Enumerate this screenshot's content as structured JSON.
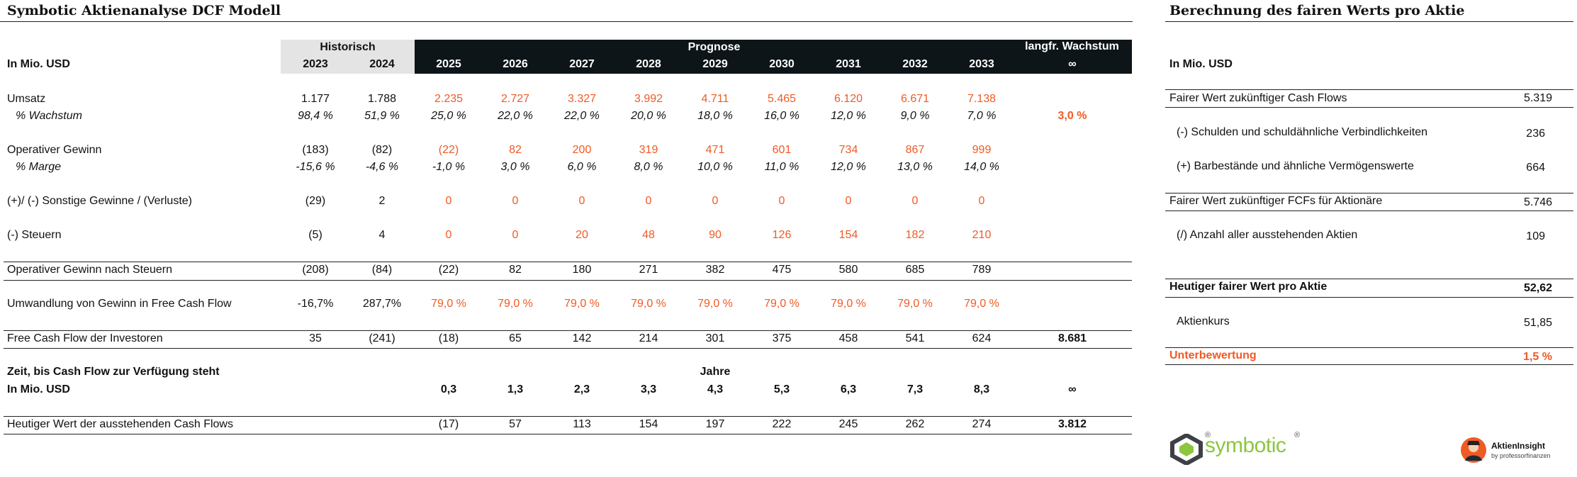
{
  "left": {
    "title": "Symbotic Aktienanalyse DCF Modell",
    "unit_label": "In Mio. USD",
    "hist_label": "Historisch",
    "prog_label": "Prognose",
    "lt_label": "langfr. Wachstum",
    "inf": "∞",
    "years": [
      "2023",
      "2024",
      "2025",
      "2026",
      "2027",
      "2028",
      "2029",
      "2030",
      "2031",
      "2032",
      "2033"
    ],
    "rows": [
      {
        "label": "Umsatz",
        "values": [
          "1.177",
          "1.788",
          "2.235",
          "2.727",
          "3.327",
          "3.992",
          "4.711",
          "5.465",
          "6.120",
          "6.671",
          "7.138"
        ]
      },
      {
        "label": "% Wachstum",
        "values": [
          "98,4 %",
          "51,9 %",
          "25,0 %",
          "22,0 %",
          "22,0 %",
          "20,0 %",
          "18,0 %",
          "16,0 %",
          "12,0 %",
          "9,0 %",
          "7,0 %"
        ],
        "extra": "3,0 %"
      },
      {
        "label": "Operativer Gewinn",
        "values": [
          "(183)",
          "(82)",
          "(22)",
          "82",
          "200",
          "319",
          "471",
          "601",
          "734",
          "867",
          "999"
        ]
      },
      {
        "label": "% Marge",
        "values": [
          "-15,6 %",
          "-4,6 %",
          "-1,0 %",
          "3,0 %",
          "6,0 %",
          "8,0 %",
          "10,0 %",
          "11,0 %",
          "12,0 %",
          "13,0 %",
          "14,0 %"
        ]
      },
      {
        "label": "(+)/ (-) Sonstige Gewinne / (Verluste)",
        "values": [
          "(29)",
          "2",
          "0",
          "0",
          "0",
          "0",
          "0",
          "0",
          "0",
          "0",
          "0"
        ]
      },
      {
        "label": "(-) Steuern",
        "values": [
          "(5)",
          "4",
          "0",
          "0",
          "20",
          "48",
          "90",
          "126",
          "154",
          "182",
          "210"
        ]
      },
      {
        "label": "Operativer Gewinn nach Steuern",
        "values": [
          "(208)",
          "(84)",
          "(22)",
          "82",
          "180",
          "271",
          "382",
          "475",
          "580",
          "685",
          "789"
        ]
      },
      {
        "label": "Umwandlung von Gewinn in Free Cash Flow",
        "values": [
          "-16,7%",
          "287,7%",
          "79,0 %",
          "79,0 %",
          "79,0 %",
          "79,0 %",
          "79,0 %",
          "79,0 %",
          "79,0 %",
          "79,0 %",
          "79,0 %"
        ]
      },
      {
        "label": "Free Cash Flow der Investoren",
        "values": [
          "35",
          "(241)",
          "(18)",
          "65",
          "142",
          "214",
          "301",
          "375",
          "458",
          "541",
          "624"
        ],
        "extra": "8.681"
      }
    ],
    "time_label": "Zeit, bis Cash Flow zur Verfügung steht",
    "jahre_label": "Jahre",
    "time_unit": "In Mio. USD",
    "time_values": [
      "0,3",
      "1,3",
      "2,3",
      "3,3",
      "4,3",
      "5,3",
      "6,3",
      "7,3",
      "8,3"
    ],
    "pv": {
      "label": "Heutiger Wert der ausstehenden Cash Flows",
      "values": [
        "(17)",
        "57",
        "113",
        "154",
        "197",
        "222",
        "245",
        "262",
        "274"
      ],
      "extra": "3.812"
    }
  },
  "right": {
    "title": "Berechnung des fairen Werts pro Aktie",
    "unit_label": "In Mio. USD",
    "rows": [
      {
        "label": "Fairer Wert zukünftiger Cash Flows",
        "value": "5.319"
      },
      {
        "label": "(-) Schulden und schuldähnliche Verbindlichkeiten",
        "value": "236"
      },
      {
        "label": "(+) Barbestände und ähnliche Vermögenswerte",
        "value": "664"
      },
      {
        "label": "Fairer Wert zukünftiger FCFs für Aktionäre",
        "value": "5.746"
      },
      {
        "label": "(/) Anzahl aller ausstehenden Aktien",
        "value": "109"
      },
      {
        "label": "Heutiger fairer Wert pro Aktie",
        "value": "52,62"
      },
      {
        "label": "Aktienkurs",
        "value": "51,85"
      },
      {
        "label": "Unterbewertung",
        "value": "1,5 %"
      }
    ]
  },
  "brand": {
    "logo_text": "symbotic",
    "reg": "®",
    "insight_name": "AktienInsight",
    "insight_sub": "by professorfinanzen"
  },
  "colors": {
    "accent": "#f05a24",
    "header_dark": "#0d1518",
    "header_hist": "#e4e4e4",
    "logo_green": "#8cc63f"
  }
}
